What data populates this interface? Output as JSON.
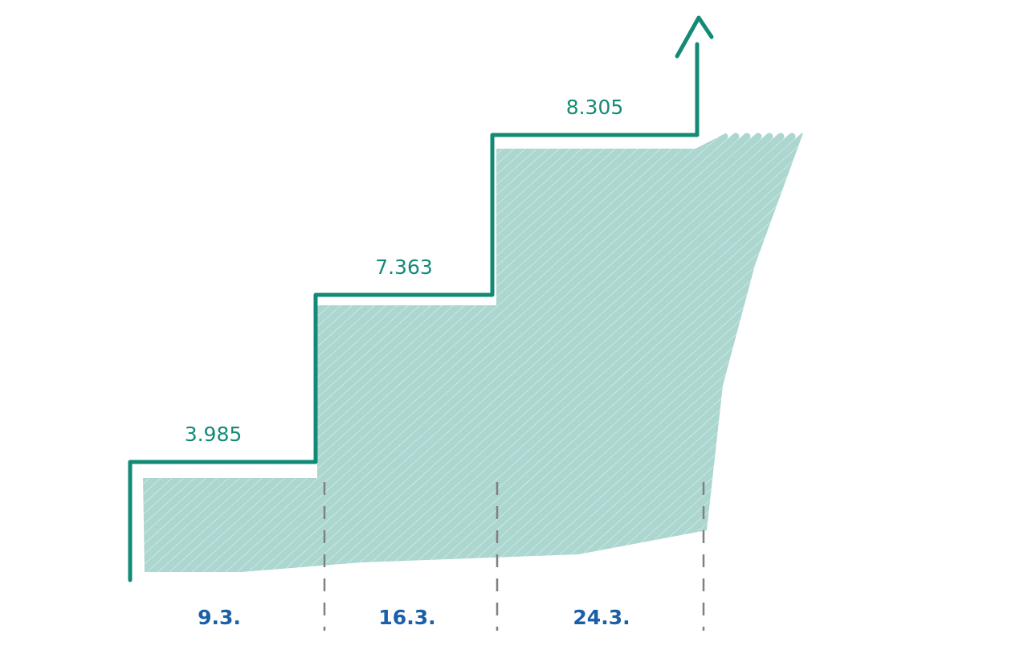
{
  "chart_data": {
    "type": "step",
    "title": "",
    "xlabel": "",
    "ylabel": "",
    "categories": [
      "9.3.",
      "16.3.",
      "24.3."
    ],
    "values": [
      3985,
      7363,
      8305
    ],
    "value_labels": [
      "3.985",
      "7.363",
      "8.305"
    ],
    "trend": "up-arrow",
    "grid": false,
    "colors": {
      "line": "#138a76",
      "fill": "#acd6d0",
      "date_label": "#1a5fa8",
      "divider": "#808080"
    }
  }
}
